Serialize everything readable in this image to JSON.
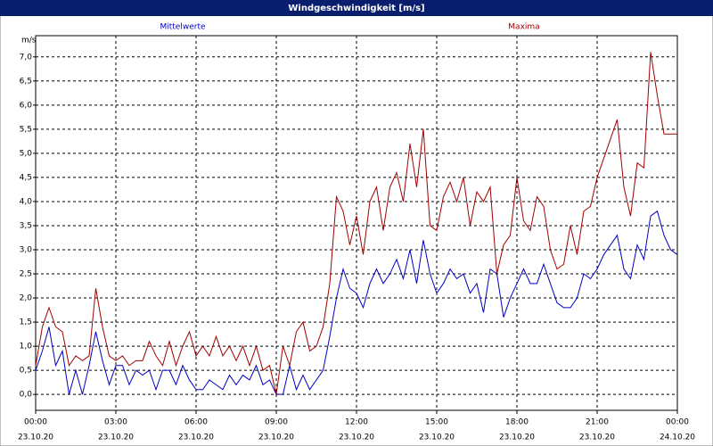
{
  "chart_data": {
    "type": "line",
    "title": "Windgeschwindigkeit [m/s]",
    "y_unit": "m/s",
    "x": [
      0,
      0.25,
      0.5,
      0.75,
      1,
      1.25,
      1.5,
      1.75,
      2,
      2.25,
      2.5,
      2.75,
      3,
      3.25,
      3.5,
      3.75,
      4,
      4.25,
      4.5,
      4.75,
      5,
      5.25,
      5.5,
      5.75,
      6,
      6.25,
      6.5,
      6.75,
      7,
      7.25,
      7.5,
      7.75,
      8,
      8.25,
      8.5,
      8.75,
      9,
      9.25,
      9.5,
      9.75,
      10,
      10.25,
      10.5,
      10.75,
      11,
      11.25,
      11.5,
      11.75,
      12,
      12.25,
      12.5,
      12.75,
      13,
      13.25,
      13.5,
      13.75,
      14,
      14.25,
      14.5,
      14.75,
      15,
      15.25,
      15.5,
      15.75,
      16,
      16.25,
      16.5,
      16.75,
      17,
      17.25,
      17.5,
      17.75,
      18,
      18.25,
      18.5,
      18.75,
      19,
      19.25,
      19.5,
      19.75,
      20,
      20.25,
      20.5,
      20.75,
      21,
      21.25,
      21.5,
      21.75,
      22,
      22.25,
      22.5,
      22.75,
      23,
      23.25,
      23.5,
      23.75,
      24
    ],
    "series": [
      {
        "name": "Mittelwerte",
        "color": "#0000c0",
        "values": [
          0.5,
          0.9,
          1.4,
          0.6,
          0.9,
          0.0,
          0.5,
          0.0,
          0.6,
          1.3,
          0.7,
          0.2,
          0.6,
          0.6,
          0.2,
          0.5,
          0.4,
          0.5,
          0.1,
          0.5,
          0.5,
          0.2,
          0.6,
          0.3,
          0.1,
          0.1,
          0.3,
          0.2,
          0.1,
          0.4,
          0.2,
          0.4,
          0.3,
          0.6,
          0.2,
          0.3,
          0.0,
          0.0,
          0.6,
          0.1,
          0.4,
          0.1,
          0.3,
          0.5,
          1.2,
          2.0,
          2.6,
          2.2,
          2.1,
          1.8,
          2.3,
          2.6,
          2.3,
          2.5,
          2.8,
          2.4,
          3.0,
          2.3,
          3.2,
          2.5,
          2.1,
          2.3,
          2.6,
          2.4,
          2.5,
          2.1,
          2.3,
          1.7,
          2.6,
          2.5,
          1.6,
          2.0,
          2.3,
          2.6,
          2.3,
          2.3,
          2.7,
          2.3,
          1.9,
          1.8,
          1.8,
          2.0,
          2.5,
          2.4,
          2.6,
          2.9,
          3.1,
          3.3,
          2.6,
          2.4,
          3.1,
          2.8,
          3.7,
          3.8,
          3.3,
          3.0,
          2.9
        ]
      },
      {
        "name": "Maxima",
        "color": "#a00000",
        "values": [
          0.6,
          1.4,
          1.8,
          1.4,
          1.3,
          0.6,
          0.8,
          0.7,
          0.8,
          2.2,
          1.4,
          0.8,
          0.7,
          0.8,
          0.6,
          0.7,
          0.7,
          1.1,
          0.8,
          0.6,
          1.1,
          0.6,
          1.0,
          1.3,
          0.8,
          1.0,
          0.8,
          1.2,
          0.8,
          1.0,
          0.7,
          1.0,
          0.6,
          1.0,
          0.5,
          0.6,
          0.0,
          1.0,
          0.6,
          1.3,
          1.5,
          0.9,
          1.0,
          1.4,
          2.3,
          4.1,
          3.8,
          3.1,
          3.7,
          2.9,
          4.0,
          4.3,
          3.4,
          4.3,
          4.6,
          4.0,
          5.2,
          4.3,
          5.5,
          3.5,
          3.4,
          4.1,
          4.4,
          4.0,
          4.5,
          3.5,
          4.2,
          4.0,
          4.3,
          2.5,
          3.1,
          3.3,
          4.5,
          3.6,
          3.4,
          4.1,
          3.9,
          3.0,
          2.6,
          2.7,
          3.5,
          2.9,
          3.8,
          3.9,
          4.5,
          4.9,
          5.3,
          5.7,
          4.3,
          3.7,
          4.8,
          4.7,
          7.1,
          6.2,
          5.4,
          5.4,
          5.4
        ]
      }
    ],
    "xlim": [
      0,
      24
    ],
    "xticks": [
      {
        "value": 0,
        "label": "00:00"
      },
      {
        "value": 3,
        "label": "03:00"
      },
      {
        "value": 6,
        "label": "06:00"
      },
      {
        "value": 9,
        "label": "09:00"
      },
      {
        "value": 12,
        "label": "12:00"
      },
      {
        "value": 15,
        "label": "15:00"
      },
      {
        "value": 18,
        "label": "18:00"
      },
      {
        "value": 21,
        "label": "21:00"
      },
      {
        "value": 24,
        "label": "00:00"
      }
    ],
    "xtick_dates": [
      "23.10.20",
      "23.10.20",
      "23.10.20",
      "23.10.20",
      "23.10.20",
      "23.10.20",
      "23.10.20",
      "23.10.20",
      "24.10.20"
    ],
    "ylim": [
      -0.33,
      7.44
    ],
    "yticks": [
      {
        "value": 0,
        "label": "0,0"
      },
      {
        "value": 0.5,
        "label": "0,5"
      },
      {
        "value": 1,
        "label": "1,0"
      },
      {
        "value": 1.5,
        "label": "1,5"
      },
      {
        "value": 2,
        "label": "2,0"
      },
      {
        "value": 2.5,
        "label": "2,5"
      },
      {
        "value": 3,
        "label": "3,0"
      },
      {
        "value": 3.5,
        "label": "3,5"
      },
      {
        "value": 4,
        "label": "4,0"
      },
      {
        "value": 4.5,
        "label": "4,5"
      },
      {
        "value": 5,
        "label": "5,0"
      },
      {
        "value": 5.5,
        "label": "5,5"
      },
      {
        "value": 6,
        "label": "6,0"
      },
      {
        "value": 6.5,
        "label": "6,5"
      },
      {
        "value": 7,
        "label": "7,0"
      }
    ],
    "grid": true
  }
}
